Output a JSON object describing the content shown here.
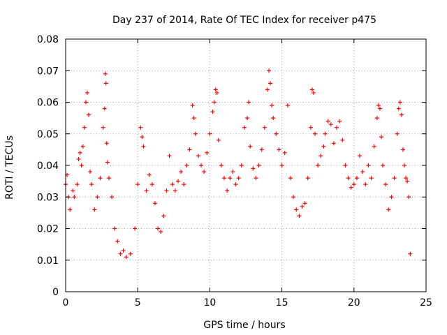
{
  "chart_data": {
    "type": "scatter",
    "title": "Day 237 of 2014, Rate Of TEC Index for receiver p475",
    "xlabel": "GPS time / hours",
    "ylabel": "ROTI / TECUs",
    "xlim": [
      0,
      25
    ],
    "ylim": [
      0,
      0.08
    ],
    "xticks": [
      0,
      5,
      10,
      15,
      20,
      25
    ],
    "yticks": [
      0,
      0.01,
      0.02,
      0.03,
      0.04,
      0.05,
      0.06,
      0.07,
      0.08
    ],
    "xtick_labels": [
      "0",
      "5",
      "10",
      "15",
      "20",
      "25"
    ],
    "ytick_labels": [
      "0",
      "0.01",
      "0.02",
      "0.03",
      "0.04",
      "0.05",
      "0.06",
      "0.07",
      "0.08"
    ],
    "grid": true,
    "legend": "none",
    "marker": "+",
    "series": [
      {
        "color": "#ff0000",
        "points": [
          [
            0.0,
            0.034
          ],
          [
            0.1,
            0.037
          ],
          [
            0.2,
            0.03
          ],
          [
            0.3,
            0.026
          ],
          [
            0.5,
            0.032
          ],
          [
            0.6,
            0.03
          ],
          [
            0.8,
            0.034
          ],
          [
            0.9,
            0.042
          ],
          [
            1.0,
            0.044
          ],
          [
            1.1,
            0.04
          ],
          [
            1.2,
            0.046
          ],
          [
            1.3,
            0.052
          ],
          [
            1.4,
            0.06
          ],
          [
            1.5,
            0.063
          ],
          [
            1.6,
            0.056
          ],
          [
            1.7,
            0.038
          ],
          [
            1.8,
            0.034
          ],
          [
            2.0,
            0.026
          ],
          [
            2.2,
            0.03
          ],
          [
            2.4,
            0.036
          ],
          [
            2.6,
            0.052
          ],
          [
            2.7,
            0.058
          ],
          [
            2.75,
            0.069
          ],
          [
            2.8,
            0.066
          ],
          [
            2.85,
            0.047
          ],
          [
            2.9,
            0.041
          ],
          [
            3.0,
            0.036
          ],
          [
            3.2,
            0.03
          ],
          [
            3.4,
            0.02
          ],
          [
            3.6,
            0.016
          ],
          [
            3.8,
            0.012
          ],
          [
            4.0,
            0.013
          ],
          [
            4.2,
            0.011
          ],
          [
            4.5,
            0.012
          ],
          [
            4.8,
            0.02
          ],
          [
            5.0,
            0.034
          ],
          [
            5.2,
            0.052
          ],
          [
            5.3,
            0.049
          ],
          [
            5.4,
            0.046
          ],
          [
            5.6,
            0.032
          ],
          [
            5.8,
            0.037
          ],
          [
            6.0,
            0.034
          ],
          [
            6.2,
            0.028
          ],
          [
            6.4,
            0.02
          ],
          [
            6.6,
            0.019
          ],
          [
            6.8,
            0.024
          ],
          [
            7.0,
            0.032
          ],
          [
            7.2,
            0.043
          ],
          [
            7.4,
            0.034
          ],
          [
            7.6,
            0.032
          ],
          [
            7.8,
            0.035
          ],
          [
            8.0,
            0.038
          ],
          [
            8.2,
            0.034
          ],
          [
            8.4,
            0.04
          ],
          [
            8.6,
            0.045
          ],
          [
            8.8,
            0.059
          ],
          [
            8.9,
            0.055
          ],
          [
            9.0,
            0.05
          ],
          [
            9.2,
            0.043
          ],
          [
            9.4,
            0.04
          ],
          [
            9.6,
            0.038
          ],
          [
            9.8,
            0.044
          ],
          [
            10.0,
            0.05
          ],
          [
            10.2,
            0.057
          ],
          [
            10.3,
            0.06
          ],
          [
            10.4,
            0.064
          ],
          [
            10.5,
            0.063
          ],
          [
            10.6,
            0.048
          ],
          [
            10.8,
            0.04
          ],
          [
            11.0,
            0.036
          ],
          [
            11.2,
            0.032
          ],
          [
            11.4,
            0.036
          ],
          [
            11.6,
            0.038
          ],
          [
            11.8,
            0.034
          ],
          [
            12.0,
            0.036
          ],
          [
            12.2,
            0.04
          ],
          [
            12.4,
            0.052
          ],
          [
            12.6,
            0.055
          ],
          [
            12.7,
            0.06
          ],
          [
            12.8,
            0.046
          ],
          [
            13.0,
            0.039
          ],
          [
            13.2,
            0.036
          ],
          [
            13.4,
            0.04
          ],
          [
            13.6,
            0.045
          ],
          [
            13.8,
            0.052
          ],
          [
            14.0,
            0.064
          ],
          [
            14.1,
            0.07
          ],
          [
            14.2,
            0.066
          ],
          [
            14.3,
            0.059
          ],
          [
            14.4,
            0.055
          ],
          [
            14.6,
            0.05
          ],
          [
            14.8,
            0.045
          ],
          [
            15.0,
            0.04
          ],
          [
            15.2,
            0.044
          ],
          [
            15.4,
            0.059
          ],
          [
            15.6,
            0.036
          ],
          [
            15.8,
            0.03
          ],
          [
            16.0,
            0.026
          ],
          [
            16.2,
            0.024
          ],
          [
            16.4,
            0.027
          ],
          [
            16.6,
            0.028
          ],
          [
            16.8,
            0.036
          ],
          [
            17.0,
            0.052
          ],
          [
            17.1,
            0.064
          ],
          [
            17.2,
            0.063
          ],
          [
            17.3,
            0.05
          ],
          [
            17.5,
            0.04
          ],
          [
            17.7,
            0.043
          ],
          [
            17.9,
            0.046
          ],
          [
            18.0,
            0.05
          ],
          [
            18.2,
            0.054
          ],
          [
            18.4,
            0.053
          ],
          [
            18.6,
            0.047
          ],
          [
            18.8,
            0.052
          ],
          [
            19.0,
            0.054
          ],
          [
            19.2,
            0.048
          ],
          [
            19.4,
            0.04
          ],
          [
            19.6,
            0.036
          ],
          [
            19.8,
            0.033
          ],
          [
            20.0,
            0.034
          ],
          [
            20.2,
            0.036
          ],
          [
            20.4,
            0.043
          ],
          [
            20.6,
            0.038
          ],
          [
            20.8,
            0.034
          ],
          [
            21.0,
            0.04
          ],
          [
            21.2,
            0.036
          ],
          [
            21.4,
            0.046
          ],
          [
            21.6,
            0.055
          ],
          [
            21.7,
            0.059
          ],
          [
            21.8,
            0.058
          ],
          [
            21.9,
            0.049
          ],
          [
            22.0,
            0.04
          ],
          [
            22.2,
            0.034
          ],
          [
            22.4,
            0.026
          ],
          [
            22.6,
            0.03
          ],
          [
            22.8,
            0.036
          ],
          [
            23.0,
            0.05
          ],
          [
            23.1,
            0.058
          ],
          [
            23.2,
            0.06
          ],
          [
            23.3,
            0.056
          ],
          [
            23.4,
            0.045
          ],
          [
            23.5,
            0.04
          ],
          [
            23.6,
            0.036
          ],
          [
            23.7,
            0.035
          ],
          [
            23.8,
            0.03
          ],
          [
            23.9,
            0.012
          ]
        ]
      }
    ]
  }
}
